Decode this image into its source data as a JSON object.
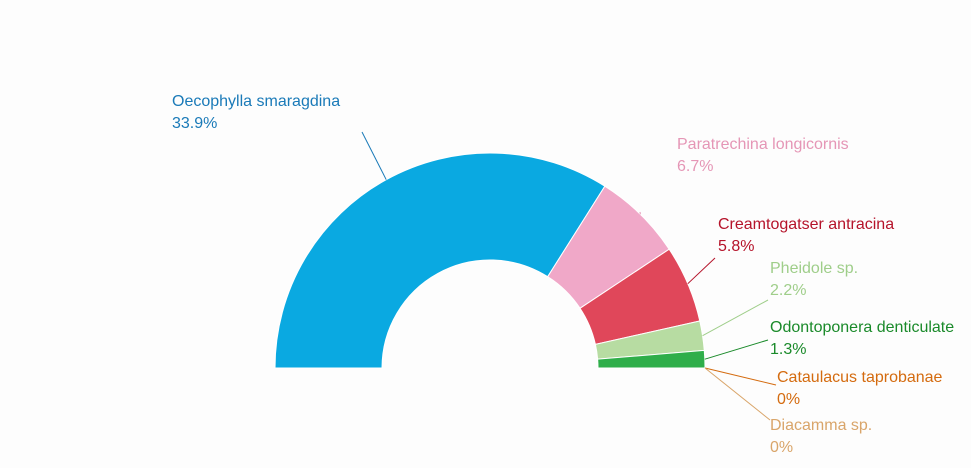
{
  "chart_data": {
    "type": "semi-donut",
    "categories": [
      "Oecophylla smaragdina",
      "Paratrechina longicornis",
      "Creamtogatser antracina",
      "Pheidole sp.",
      "Odontoponera denticulate",
      "Cataulacus taprobanae",
      "Diacamma sp."
    ],
    "values": [
      33.9,
      6.7,
      5.8,
      2.2,
      1.3,
      0,
      0
    ],
    "value_labels": [
      "33.9%",
      "6.7%",
      "5.8%",
      "2.2%",
      "1.3%",
      "0%",
      "0%"
    ],
    "colors": [
      "#0aa9e1",
      "#f0a8c8",
      "#e0475a",
      "#b7dca2",
      "#2fae4a",
      "#e07b18",
      "#e0b27a"
    ]
  }
}
